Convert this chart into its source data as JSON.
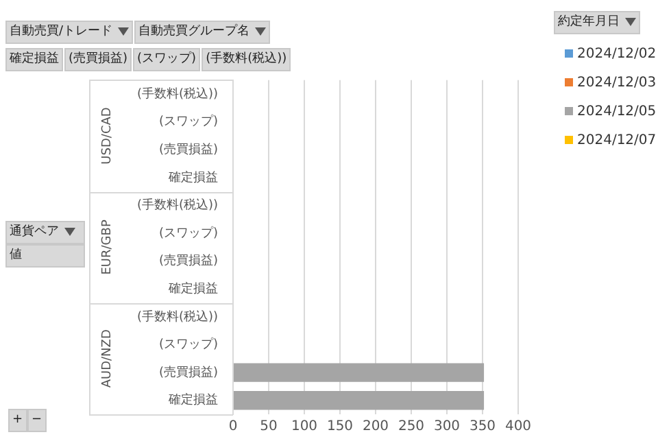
{
  "chart_data": {
    "type": "bar",
    "orientation": "horizontal",
    "categories": [
      "(手数料(税込))",
      "(スワップ)",
      "(売買損益)",
      "確定損益",
      "(手数料(税込))",
      "(スワップ)",
      "(売買損益)",
      "確定損益",
      "(手数料(税込))",
      "(スワップ)",
      "(売買損益)",
      "確定損益"
    ],
    "series": [
      {
        "name": "2024/12/02",
        "color": "#5b9bd5",
        "values": [
          null,
          null,
          null,
          null,
          null,
          null,
          null,
          null,
          null,
          null,
          null,
          null
        ]
      },
      {
        "name": "2024/12/03",
        "color": "#ed7d31",
        "values": [
          null,
          null,
          null,
          null,
          null,
          null,
          null,
          null,
          null,
          null,
          null,
          null
        ]
      },
      {
        "name": "2024/12/05",
        "color": "#a5a5a5",
        "values": [
          null,
          null,
          null,
          null,
          null,
          null,
          null,
          null,
          null,
          null,
          352,
          352
        ]
      },
      {
        "name": "2024/12/07",
        "color": "#ffc000",
        "values": [
          null,
          null,
          null,
          null,
          null,
          null,
          null,
          null,
          null,
          null,
          null,
          null
        ]
      }
    ],
    "xlim": [
      0,
      400
    ],
    "xticks": [
      0,
      50,
      100,
      150,
      200,
      250,
      300,
      350,
      400
    ],
    "grid": "x",
    "legend": "right",
    "legend_title": "約定年月日",
    "annotations": [
      "USD/CAD",
      "EUR/GBP",
      "AUD/NZD",
      "自動売買/トレード",
      "自動売買グループ名",
      "確定損益",
      "(売買損益)",
      "(スワップ)",
      "(手数料(税込))",
      "通貨ペア",
      "値",
      "+",
      "−"
    ]
  }
}
